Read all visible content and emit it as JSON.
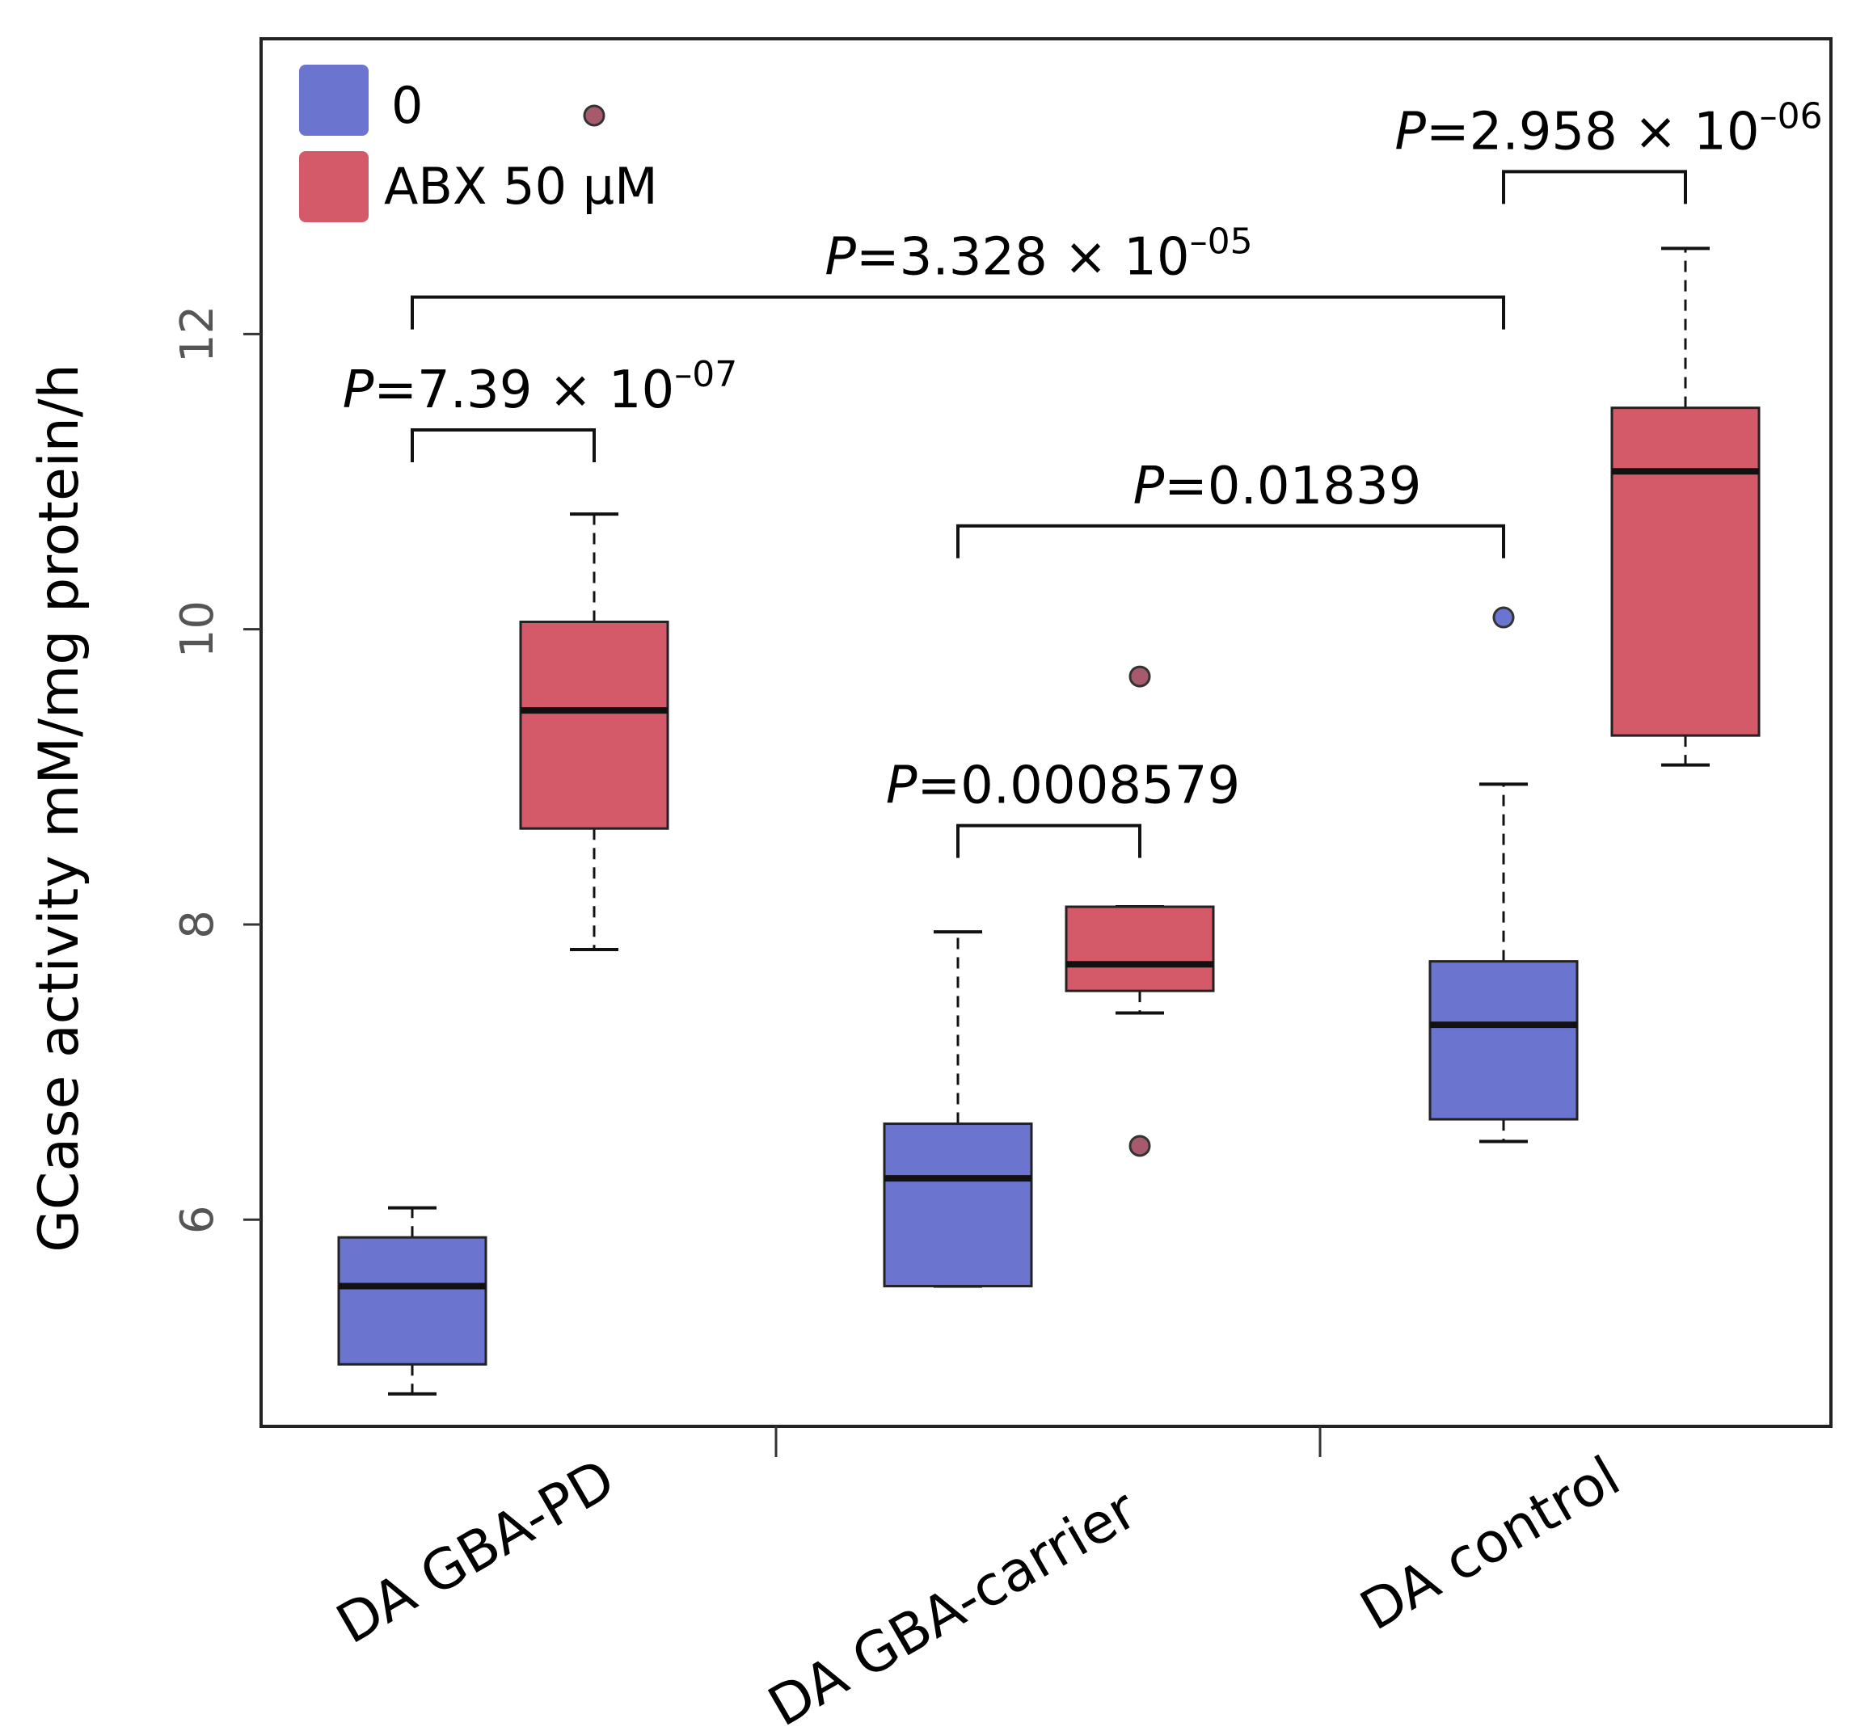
{
  "chart_data": {
    "type": "boxplot",
    "ylabel": "GCase activity mM/mg protein/h",
    "ylim": [
      4.6,
      14.0
    ],
    "yticks": [
      6,
      8,
      10,
      12
    ],
    "categories": [
      "DA GBA-PD",
      "DA GBA-carrier",
      "DA control"
    ],
    "legend": {
      "placement": "top-left",
      "entries": [
        {
          "label": "0",
          "color": "#6b74cf"
        },
        {
          "label": "ABX 50 μM",
          "color": "#d45a6a"
        }
      ]
    },
    "series": [
      {
        "name": "0",
        "color": "#6b74cf",
        "boxes": [
          {
            "min": 4.82,
            "q1": 5.02,
            "median": 5.55,
            "q3": 5.88,
            "max": 6.08,
            "outliers": []
          },
          {
            "min": 5.55,
            "q1": 5.55,
            "median": 6.28,
            "q3": 6.65,
            "max": 7.95,
            "outliers": []
          },
          {
            "min": 6.53,
            "q1": 6.68,
            "median": 7.32,
            "q3": 7.75,
            "max": 8.95,
            "outliers": [
              10.08
            ]
          }
        ]
      },
      {
        "name": "ABX 50 μM",
        "color": "#d45a6a",
        "boxes": [
          {
            "min": 7.83,
            "q1": 8.65,
            "median": 9.45,
            "q3": 10.05,
            "max": 10.78,
            "outliers": [
              13.48
            ]
          },
          {
            "min": 7.4,
            "q1": 7.55,
            "median": 7.73,
            "q3": 8.12,
            "max": 8.12,
            "outliers": [
              9.68,
              6.5
            ]
          },
          {
            "min": 9.08,
            "q1": 9.28,
            "median": 11.07,
            "q3": 11.5,
            "max": 12.58,
            "outliers": []
          }
        ]
      }
    ],
    "annotations": [
      {
        "p": "P",
        "text": "=7.39 × 10",
        "exp": "–07",
        "from": {
          "group": 0,
          "series": 0
        },
        "to": {
          "group": 0,
          "series": 1
        },
        "y": 11.35
      },
      {
        "p": "P",
        "text": "=3.328 × 10",
        "exp": "–05",
        "from": {
          "group": 0,
          "series": 0
        },
        "to": {
          "group": 2,
          "series": 0
        },
        "y": 12.25
      },
      {
        "p": "P",
        "text": "=2.958 × 10",
        "exp": "–06",
        "from": {
          "group": 2,
          "series": 0
        },
        "to": {
          "group": 2,
          "series": 1
        },
        "y": 13.1
      },
      {
        "p": "P",
        "text": "=0.01839",
        "exp": "",
        "from": {
          "group": 1,
          "series": 0
        },
        "to": {
          "group": 2,
          "series": 0
        },
        "y": 10.7
      },
      {
        "p": "P",
        "text": "=0.0008579",
        "exp": "",
        "from": {
          "group": 1,
          "series": 0
        },
        "to": {
          "group": 1,
          "series": 1
        },
        "y": 8.67
      }
    ]
  }
}
